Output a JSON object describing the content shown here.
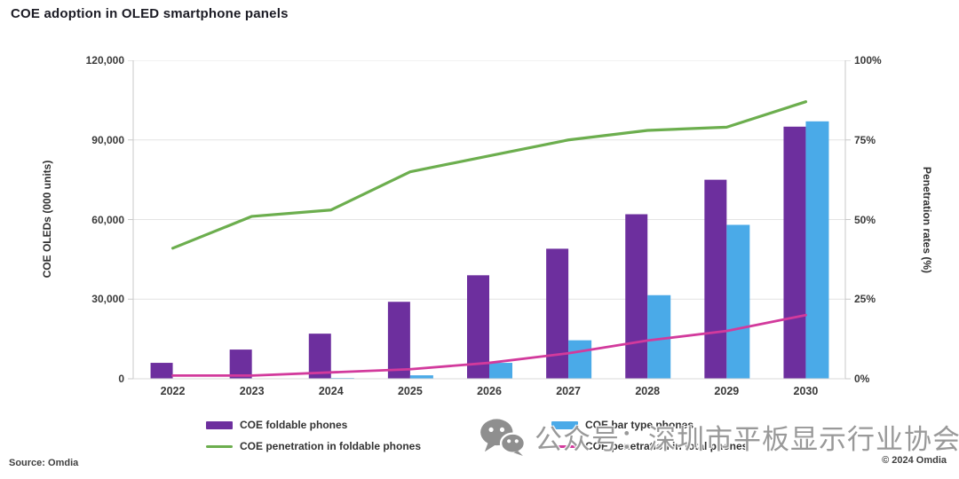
{
  "title": "COE adoption in OLED smartphone panels",
  "source": "Source: Omdia",
  "copyright": "© 2024 Omdia",
  "watermark": {
    "icon": "wechat-icon",
    "text": "公众号：深圳市平板显示行业协会"
  },
  "colors": {
    "title_text": "#1b1b24",
    "axis_text": "#3a3a3a",
    "grid": "#e4e4e4",
    "axis_line": "#c9c9c9",
    "bar_purple": "#6d2f9e",
    "bar_blue": "#4aaae8",
    "line_green": "#6cae4e",
    "line_pink": "#d23a9c",
    "watermark_gray": "#999999"
  },
  "chart_data": {
    "type": "bar",
    "subtype": "combo-bar-line-dual-axis",
    "title": "COE adoption in OLED smartphone panels",
    "categories": [
      "2022",
      "2023",
      "2024",
      "2025",
      "2026",
      "2027",
      "2028",
      "2029",
      "2030"
    ],
    "series": [
      {
        "name": "COE foldable phones",
        "kind": "bar",
        "axis": "left",
        "color": "#6d2f9e",
        "values": [
          6000,
          11000,
          17000,
          29000,
          39000,
          49000,
          62000,
          75000,
          95000
        ]
      },
      {
        "name": "COE bar type phones",
        "kind": "bar",
        "axis": "left",
        "color": "#4aaae8",
        "values": [
          0,
          0,
          300,
          1300,
          6000,
          14500,
          31500,
          58000,
          97000
        ]
      },
      {
        "name": "COE penetration in foldable phones",
        "kind": "line",
        "axis": "right",
        "color": "#6cae4e",
        "values": [
          41,
          51,
          53,
          65,
          70,
          75,
          78,
          79,
          87
        ]
      },
      {
        "name": "COE penetration in total phones",
        "kind": "line",
        "axis": "right",
        "color": "#d23a9c",
        "values": [
          1,
          1,
          2,
          3,
          5,
          8,
          12,
          15,
          20
        ]
      }
    ],
    "xlabel": "",
    "ylabel": "COE OLEDs (000 units)",
    "y2label": "Penetration rates (%)",
    "ylim": [
      0,
      120000
    ],
    "y2lim": [
      0,
      100
    ],
    "ytick_values": [
      0,
      30000,
      60000,
      90000,
      120000
    ],
    "ytick_labels": [
      "0",
      "30,000",
      "60,000",
      "90,000",
      "120,000"
    ],
    "y2tick_values": [
      0,
      25,
      50,
      75,
      100
    ],
    "y2tick_labels": [
      "0%",
      "25%",
      "50%",
      "75%",
      "100%"
    ],
    "grid": true,
    "legend_position": "bottom"
  }
}
